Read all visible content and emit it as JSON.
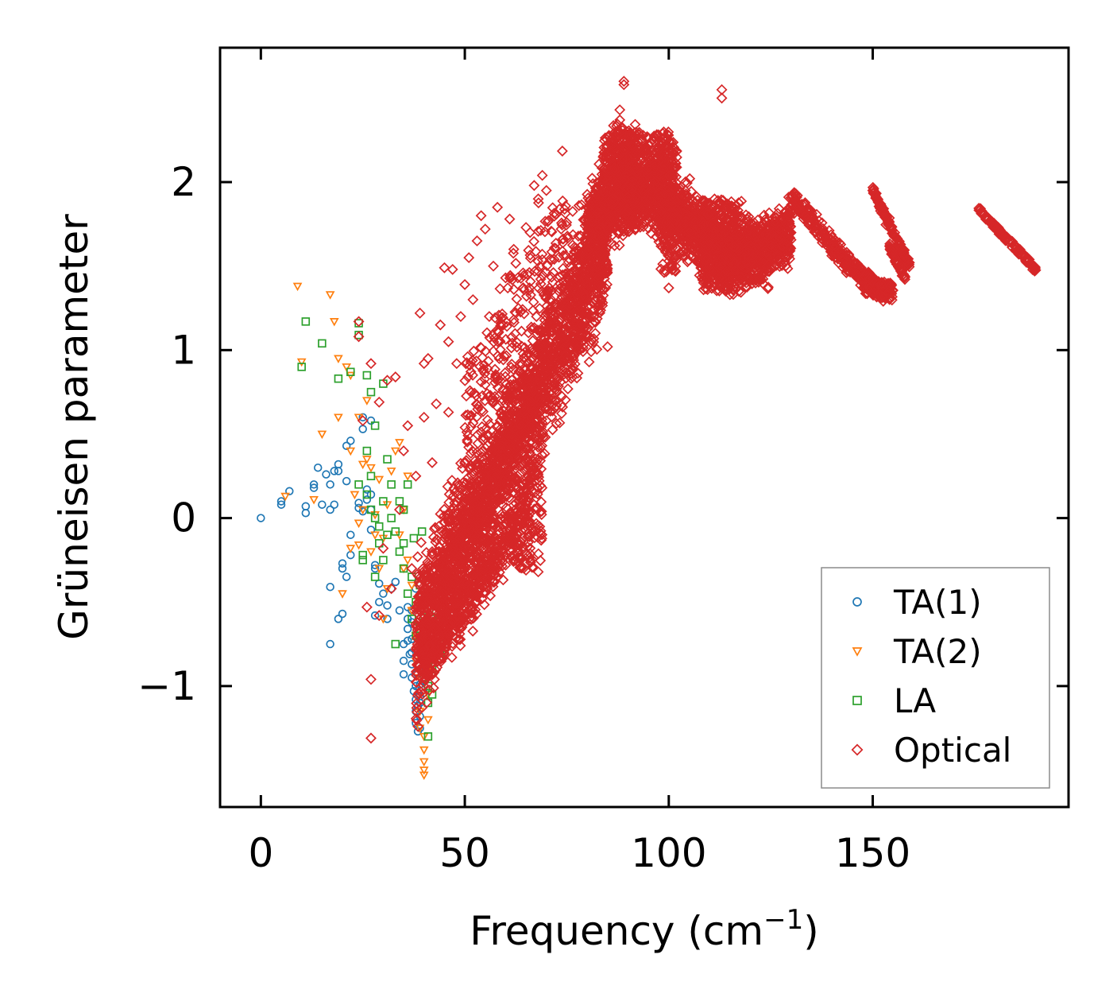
{
  "chart_data": {
    "type": "scatter",
    "xlabel": "Frequency (cm",
    "xlabel_sup": "−1",
    "xlabel_close": ")",
    "ylabel": "Grüneisen parameter",
    "xlim": [
      -10,
      198
    ],
    "ylim": [
      -1.72,
      2.8
    ],
    "xticks": [
      0,
      50,
      100,
      150
    ],
    "xtick_labels": [
      "0",
      "50",
      "100",
      "150"
    ],
    "yticks": [
      -1,
      0,
      1,
      2
    ],
    "ytick_labels": [
      "−1",
      "0",
      "1",
      "2"
    ],
    "legend_position": "lower-right",
    "series": [
      {
        "name": "TA(1)",
        "marker": "circle",
        "color": "#1f77b4",
        "points": [
          [
            0,
            0.0
          ],
          [
            5,
            0.1
          ],
          [
            5,
            0.08
          ],
          [
            7,
            0.16
          ],
          [
            11,
            0.07
          ],
          [
            11,
            0.03
          ],
          [
            13,
            0.18
          ],
          [
            13,
            0.2
          ],
          [
            14,
            0.3
          ],
          [
            15,
            0.08
          ],
          [
            16,
            0.26
          ],
          [
            17,
            0.05
          ],
          [
            17,
            0.2
          ],
          [
            17,
            -0.41
          ],
          [
            17,
            -0.75
          ],
          [
            18,
            0.28
          ],
          [
            18,
            0.08
          ],
          [
            19,
            0.32
          ],
          [
            19,
            0.28
          ],
          [
            19,
            -0.6
          ],
          [
            20,
            -0.57
          ],
          [
            20,
            -0.27
          ],
          [
            20,
            -0.3
          ],
          [
            21,
            0.43
          ],
          [
            21,
            -0.35
          ],
          [
            21,
            0.22
          ],
          [
            22,
            0.46
          ],
          [
            22,
            -0.22
          ],
          [
            22,
            -0.1
          ],
          [
            24,
            0.06
          ],
          [
            24,
            0.09
          ],
          [
            25,
            0.6
          ],
          [
            25,
            0.04
          ],
          [
            25,
            0.53
          ],
          [
            26,
            0.11
          ],
          [
            26,
            0.17
          ],
          [
            27,
            0.14
          ],
          [
            27,
            0.58
          ],
          [
            27,
            0.05
          ],
          [
            27,
            -0.07
          ],
          [
            28,
            -0.28
          ],
          [
            28,
            -0.58
          ],
          [
            28,
            -0.3
          ],
          [
            29,
            -0.39
          ],
          [
            29,
            -0.5
          ],
          [
            30,
            -0.45
          ],
          [
            31,
            -0.6
          ],
          [
            31,
            -0.52
          ],
          [
            32,
            -0.42
          ],
          [
            33,
            -0.38
          ],
          [
            34,
            -0.55
          ],
          [
            35,
            -0.75
          ],
          [
            35,
            -0.85
          ],
          [
            35,
            -0.93
          ],
          [
            36,
            -0.53
          ],
          [
            36,
            -0.6
          ],
          [
            36,
            -0.66
          ],
          [
            36,
            -0.73
          ],
          [
            37,
            -0.72
          ],
          [
            37,
            -0.87
          ],
          [
            37,
            -0.95
          ],
          [
            37,
            -0.62
          ],
          [
            37,
            -0.55
          ],
          [
            38,
            -0.42
          ],
          [
            38,
            -0.93
          ],
          [
            38,
            -1.0
          ],
          [
            38,
            -1.08
          ],
          [
            38,
            -1.15
          ],
          [
            38,
            -1.22
          ],
          [
            39,
            -0.99
          ],
          [
            39,
            -1.06
          ],
          [
            39,
            -1.18
          ],
          [
            39,
            -1.25
          ],
          [
            39,
            -1.1
          ],
          [
            39,
            -0.8
          ],
          [
            40,
            -0.88
          ],
          [
            40,
            -0.97
          ],
          [
            40,
            -1.04
          ],
          [
            38.5,
            -1.27
          ],
          [
            38.5,
            -1.12
          ],
          [
            37.5,
            -1.03
          ],
          [
            36.5,
            -0.81
          ],
          [
            38,
            -0.7
          ],
          [
            37,
            -0.8
          ],
          [
            39.5,
            -0.9
          ]
        ]
      },
      {
        "name": "TA(2)",
        "marker": "triangle-down",
        "color": "#ff7f0e",
        "points": [
          [
            6,
            0.13
          ],
          [
            9,
            1.38
          ],
          [
            10,
            0.93
          ],
          [
            13,
            0.11
          ],
          [
            15,
            0.5
          ],
          [
            17,
            1.33
          ],
          [
            18,
            1.17
          ],
          [
            19,
            0.95
          ],
          [
            19,
            0.6
          ],
          [
            20,
            -0.45
          ],
          [
            21,
            0.9
          ],
          [
            22,
            0.85
          ],
          [
            22,
            0.4
          ],
          [
            22,
            -0.18
          ],
          [
            23,
            0.14
          ],
          [
            24,
            -0.16
          ],
          [
            24,
            0.6
          ],
          [
            24,
            -0.03
          ],
          [
            25,
            0.32
          ],
          [
            25,
            0.05
          ],
          [
            26,
            0.7
          ],
          [
            26,
            0.35
          ],
          [
            27,
            0.3
          ],
          [
            27,
            -0.2
          ],
          [
            28,
            0.02
          ],
          [
            28,
            -0.1
          ],
          [
            29,
            0.23
          ],
          [
            29,
            -0.3
          ],
          [
            30,
            -0.6
          ],
          [
            30,
            -0.12
          ],
          [
            31,
            0.08
          ],
          [
            31,
            -0.42
          ],
          [
            32,
            0.28
          ],
          [
            33,
            0.4
          ],
          [
            34,
            0.45
          ],
          [
            34,
            -0.1
          ],
          [
            35,
            -0.3
          ],
          [
            35,
            0.05
          ],
          [
            36,
            -0.25
          ],
          [
            37,
            -0.4
          ],
          [
            37,
            -0.55
          ],
          [
            38,
            -0.7
          ],
          [
            38,
            -0.85
          ],
          [
            39,
            -0.95
          ],
          [
            39,
            -1.15
          ],
          [
            39,
            -1.25
          ],
          [
            40,
            -1.3
          ],
          [
            40,
            -1.38
          ],
          [
            40,
            -1.45
          ],
          [
            40,
            -1.5
          ],
          [
            40,
            -1.53
          ],
          [
            41,
            -0.9
          ],
          [
            41,
            -1.05
          ],
          [
            41,
            -1.2
          ],
          [
            42,
            -0.8
          ],
          [
            42,
            -0.62
          ],
          [
            36,
            0.25
          ]
        ]
      },
      {
        "name": "LA",
        "marker": "square",
        "color": "#2ca02c",
        "points": [
          [
            10,
            0.9
          ],
          [
            11,
            1.17
          ],
          [
            15,
            1.04
          ],
          [
            19,
            0.83
          ],
          [
            22,
            0.87
          ],
          [
            24,
            0.2
          ],
          [
            24,
            1.16
          ],
          [
            24,
            1.09
          ],
          [
            25,
            -0.22
          ],
          [
            25,
            -0.25
          ],
          [
            26,
            0.14
          ],
          [
            26,
            0.4
          ],
          [
            26,
            0.85
          ],
          [
            27,
            0.75
          ],
          [
            27,
            0.25
          ],
          [
            27,
            0.05
          ],
          [
            28,
            0.0
          ],
          [
            28,
            -0.35
          ],
          [
            28,
            0.55
          ],
          [
            29,
            -0.05
          ],
          [
            29,
            -0.15
          ],
          [
            30,
            0.8
          ],
          [
            30,
            0.1
          ],
          [
            30,
            -0.25
          ],
          [
            31,
            0.35
          ],
          [
            31,
            -0.1
          ],
          [
            32,
            0.2
          ],
          [
            32,
            0.0
          ],
          [
            33,
            -0.08
          ],
          [
            34,
            -0.2
          ],
          [
            34,
            0.1
          ],
          [
            35,
            -0.3
          ],
          [
            35,
            0.05
          ],
          [
            35,
            -0.15
          ],
          [
            36,
            -0.45
          ],
          [
            36,
            0.2
          ],
          [
            37,
            -0.35
          ],
          [
            37,
            -0.6
          ],
          [
            38,
            -0.5
          ],
          [
            38,
            -0.7
          ],
          [
            39,
            -0.4
          ],
          [
            39,
            -0.62
          ],
          [
            40,
            -0.35
          ],
          [
            40,
            -0.8
          ],
          [
            40,
            -0.95
          ],
          [
            40,
            -0.55
          ],
          [
            41,
            -0.45
          ],
          [
            41,
            -0.65
          ],
          [
            41,
            -0.85
          ],
          [
            41,
            -1.0
          ],
          [
            41,
            -1.1
          ],
          [
            41,
            -1.3
          ],
          [
            42,
            -0.5
          ],
          [
            42,
            -0.7
          ],
          [
            42,
            -0.9
          ],
          [
            42,
            -1.05
          ],
          [
            42,
            -0.6
          ],
          [
            43,
            -0.55
          ],
          [
            43,
            -0.75
          ],
          [
            44,
            -0.6
          ],
          [
            44,
            -0.8
          ],
          [
            45,
            -0.58
          ],
          [
            45,
            -0.75
          ],
          [
            33,
            -0.75
          ],
          [
            39.5,
            -0.08
          ],
          [
            37.5,
            -0.12
          ],
          [
            39,
            -0.68
          ],
          [
            40.5,
            -0.72
          ]
        ]
      },
      {
        "name": "Optical",
        "marker": "diamond",
        "color": "#d62728",
        "generator": "dense-cloud",
        "points": [
          [
            24,
            1.17
          ],
          [
            24,
            1.08
          ],
          [
            25,
            0.58
          ],
          [
            26,
            -0.53
          ],
          [
            27,
            0.92
          ],
          [
            27,
            -0.96
          ],
          [
            27,
            -1.31
          ],
          [
            29,
            -0.58
          ],
          [
            29,
            0.69
          ],
          [
            30,
            -0.18
          ],
          [
            31,
            0.82
          ],
          [
            32,
            -0.42
          ],
          [
            33,
            0.84
          ],
          [
            34,
            0.05
          ],
          [
            35,
            0.4
          ],
          [
            36,
            0.55
          ],
          [
            37,
            -0.3
          ],
          [
            38,
            0.25
          ],
          [
            39,
            1.22
          ],
          [
            40,
            0.92
          ],
          [
            40,
            0.6
          ],
          [
            41,
            0.95
          ],
          [
            42,
            0.33
          ],
          [
            42,
            -0.2
          ],
          [
            43,
            0.68
          ],
          [
            44,
            1.15
          ],
          [
            45,
            1.49
          ],
          [
            46,
            0.63
          ],
          [
            46,
            1.05
          ],
          [
            47,
            1.48
          ],
          [
            48,
            0.92
          ],
          [
            49,
            1.2
          ],
          [
            50,
            1.39
          ],
          [
            51,
            1.55
          ],
          [
            52,
            1.3
          ],
          [
            53,
            1.65
          ],
          [
            54,
            1.8
          ],
          [
            55,
            1.72
          ],
          [
            56,
            1.2
          ],
          [
            57,
            1.5
          ],
          [
            58,
            1.85
          ],
          [
            60,
            1.43
          ],
          [
            61,
            1.78
          ],
          [
            62,
            1.6
          ],
          [
            63,
            1.43
          ],
          [
            65,
            1.73
          ],
          [
            66,
            1.7
          ],
          [
            67,
            1.98
          ],
          [
            68,
            1.9
          ],
          [
            69,
            2.04
          ],
          [
            70,
            1.95
          ],
          [
            57,
            -0.12
          ],
          [
            60,
            -0.28
          ],
          [
            62,
            -0.25
          ],
          [
            65,
            -0.31
          ],
          [
            66,
            -0.25
          ],
          [
            68,
            -0.32
          ],
          [
            68,
            0.35
          ],
          [
            70,
            0.58
          ],
          [
            72,
            0.7
          ],
          [
            76,
            0.92
          ],
          [
            78,
            1.0
          ],
          [
            80,
            1.22
          ],
          [
            82,
            1.1
          ],
          [
            85,
            1.02
          ],
          [
            89,
            2.6
          ],
          [
            89,
            2.58
          ],
          [
            88,
            2.43
          ],
          [
            88,
            2.37
          ],
          [
            100,
            1.37
          ],
          [
            104,
            1.56
          ],
          [
            113,
            2.55
          ],
          [
            113,
            2.5
          ],
          [
            115,
            1.33
          ],
          [
            119,
            1.4
          ],
          [
            122,
            1.63
          ],
          [
            124,
            1.58
          ],
          [
            127,
            1.72
          ],
          [
            150,
            1.95
          ],
          [
            155,
            1.6
          ]
        ]
      }
    ]
  }
}
